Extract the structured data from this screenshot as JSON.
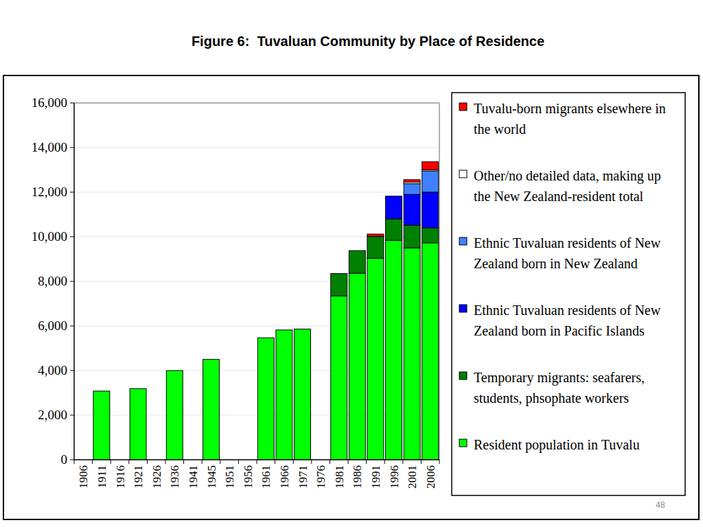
{
  "chart_data": {
    "type": "bar",
    "title": "Figure 6:  Tuvaluan Community by Place of Residence",
    "footer": "48",
    "stacked": true,
    "grid": true,
    "legend": "right",
    "categories": [
      "1906",
      "1911",
      "1916",
      "1921",
      "1926",
      "1936",
      "1941",
      "1945",
      "1951",
      "1956",
      "1961",
      "1966",
      "1971",
      "1976",
      "1981",
      "1986",
      "1991",
      "1996",
      "2001",
      "2006"
    ],
    "ylim": [
      0,
      16000
    ],
    "yticks": [
      0,
      {
        "value": 2000,
        "label": "2,000"
      },
      {
        "value": 4000,
        "label": "4,000"
      },
      {
        "value": 6000,
        "label": "6,000"
      },
      {
        "value": 8000,
        "label": "8,000"
      },
      {
        "value": 10000,
        "label": "10,000"
      },
      {
        "value": 12000,
        "label": "12,000"
      },
      {
        "value": 14000,
        "label": "14,000"
      },
      {
        "value": 16000,
        "label": "16,000"
      }
    ],
    "series": [
      {
        "name": "Resident population in Tuvalu",
        "color": "#00ff00",
        "values": [
          null,
          3080,
          null,
          3190,
          null,
          4000,
          null,
          4500,
          null,
          null,
          5470,
          5820,
          5860,
          null,
          7350,
          8360,
          9040,
          9840,
          9500,
          9730
        ]
      },
      {
        "name": "Temporary migrants: seafarers, students, phsophate workers",
        "color": "#008000",
        "values": [
          null,
          null,
          null,
          null,
          null,
          null,
          null,
          null,
          null,
          null,
          null,
          null,
          null,
          null,
          1000,
          1020,
          970,
          960,
          1020,
          670
        ]
      },
      {
        "name": "Ethnic Tuvaluan residents of New Zealand born in Pacific Islands",
        "color": "#0000ff",
        "values": [
          null,
          null,
          null,
          null,
          null,
          null,
          null,
          null,
          null,
          null,
          null,
          null,
          null,
          null,
          null,
          null,
          null,
          1020,
          1380,
          1600
        ]
      },
      {
        "name": "Ethnic Tuvaluan residents of New Zealand born in New Zealand",
        "color": "#4080ff",
        "values": [
          null,
          null,
          null,
          null,
          null,
          null,
          null,
          null,
          null,
          null,
          null,
          null,
          null,
          null,
          null,
          null,
          null,
          null,
          480,
          950
        ]
      },
      {
        "name": "Other/no detailed data, making up the New Zealand-resident total",
        "color": "#ffffff",
        "values": [
          null,
          null,
          null,
          null,
          null,
          null,
          null,
          null,
          null,
          null,
          null,
          null,
          null,
          null,
          null,
          null,
          null,
          null,
          70,
          50
        ]
      },
      {
        "name": "Tuvalu-born migrants elsewhere in the world",
        "color": "#ff0000",
        "values": [
          null,
          null,
          null,
          null,
          null,
          null,
          null,
          null,
          null,
          null,
          null,
          null,
          null,
          null,
          null,
          null,
          110,
          null,
          110,
          360
        ]
      }
    ]
  }
}
